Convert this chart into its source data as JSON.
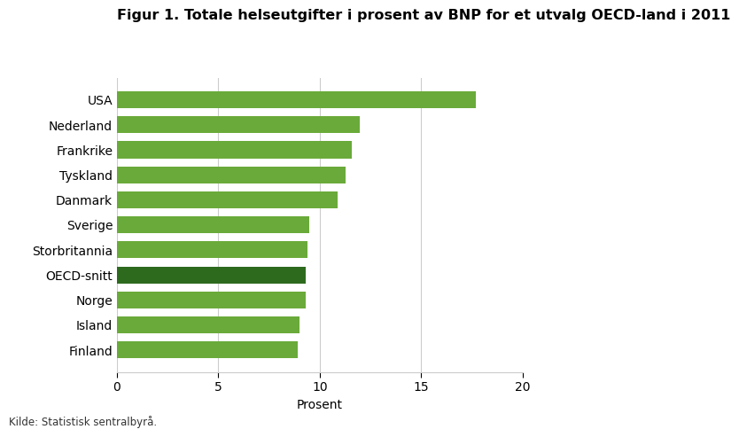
{
  "title": "Figur 1. Totale helseutgifter i prosent av BNP for et utvalg OECD-land i 2011",
  "categories": [
    "Finland",
    "Island",
    "Norge",
    "OECD-snitt",
    "Storbritannia",
    "Sverige",
    "Danmark",
    "Tyskland",
    "Frankrike",
    "Nederland",
    "USA"
  ],
  "values": [
    8.9,
    9.0,
    9.3,
    9.3,
    9.4,
    9.5,
    10.9,
    11.3,
    11.6,
    12.0,
    17.7
  ],
  "bar_colors": [
    "#6aaa3a",
    "#6aaa3a",
    "#6aaa3a",
    "#2d6a1e",
    "#6aaa3a",
    "#6aaa3a",
    "#6aaa3a",
    "#6aaa3a",
    "#6aaa3a",
    "#6aaa3a",
    "#6aaa3a"
  ],
  "xlabel": "Prosent",
  "xlim": [
    0,
    20
  ],
  "xticks": [
    0,
    5,
    10,
    15,
    20
  ],
  "background_color": "#ffffff",
  "grid_color": "#cccccc",
  "title_fontsize": 11.5,
  "label_fontsize": 10,
  "tick_fontsize": 10,
  "source_text": "Kilde: Statistisk sentralbyrå.",
  "bar_height": 0.68
}
